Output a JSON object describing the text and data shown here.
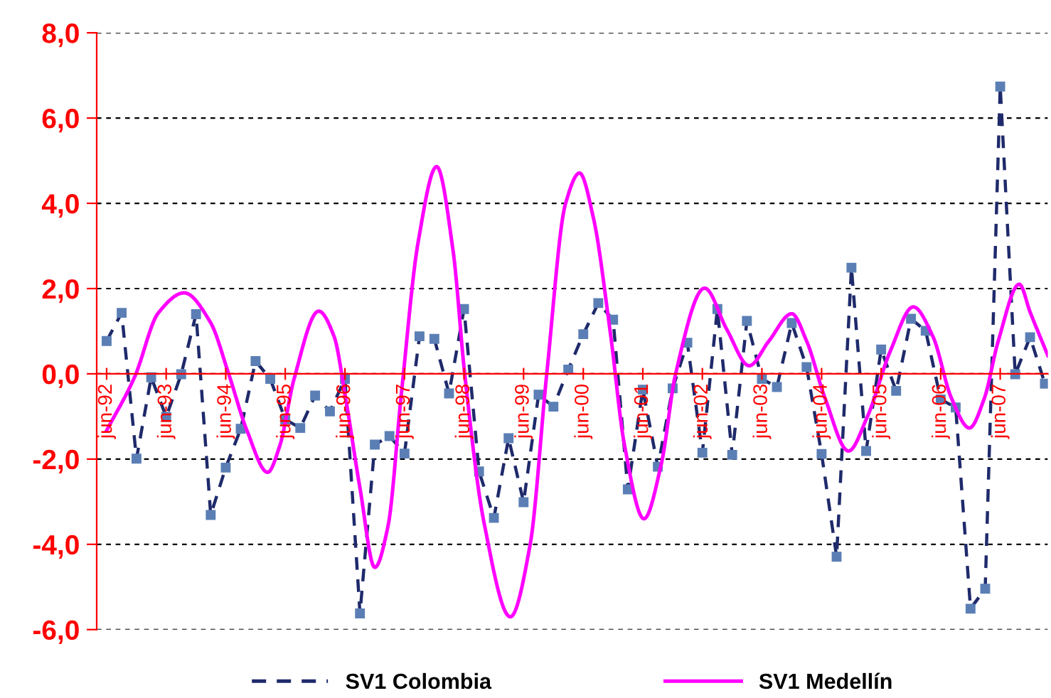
{
  "chart_data": {
    "type": "line",
    "xlim": [
      "1992-04",
      "2008-03-19"
    ],
    "xticks": [
      {
        "value": "1992-06",
        "label": "jun-92"
      },
      {
        "value": "1993-06",
        "label": "jun-93"
      },
      {
        "value": "1994-06",
        "label": "jun-94"
      },
      {
        "value": "1995-06",
        "label": "jun-95"
      },
      {
        "value": "1996-06",
        "label": "jun-96"
      },
      {
        "value": "1997-06",
        "label": "jun-97"
      },
      {
        "value": "1998-06",
        "label": "jun-98"
      },
      {
        "value": "1999-06",
        "label": "jun-99"
      },
      {
        "value": "2000-06",
        "label": "jun-00"
      },
      {
        "value": "2001-06",
        "label": "jun-01"
      },
      {
        "value": "2002-06",
        "label": "jun-02"
      },
      {
        "value": "2003-06",
        "label": "jun-03"
      },
      {
        "value": "2004-06",
        "label": "jun-04"
      },
      {
        "value": "2005-06",
        "label": "jun-05"
      },
      {
        "value": "2006-06",
        "label": "jun-06"
      },
      {
        "value": "2007-06",
        "label": "jun-07"
      }
    ],
    "ylim": [
      -6,
      8
    ],
    "yticks": [
      {
        "value": -6,
        "label": "-6,0"
      },
      {
        "value": -4,
        "label": "-4,0"
      },
      {
        "value": -2,
        "label": "-2,0"
      },
      {
        "value": 0,
        "label": "0,0"
      },
      {
        "value": 2,
        "label": "2,0"
      },
      {
        "value": 4,
        "label": "4,0"
      },
      {
        "value": 6,
        "label": "6,0"
      },
      {
        "value": 8,
        "label": "8,0"
      }
    ],
    "grid": "y",
    "legend": "bottom",
    "series": [
      {
        "name": "SV1 Colombia",
        "color": "#1f2a6b",
        "line_style": "dashed",
        "marker": "square",
        "x": [
          "1992-06",
          "1992-09",
          "1992-12",
          "1993-03",
          "1993-06",
          "1993-09",
          "1993-12",
          "1994-03",
          "1994-06",
          "1994-09",
          "1994-12",
          "1995-03",
          "1995-06",
          "1995-09",
          "1995-12",
          "1996-03",
          "1996-06",
          "1996-09",
          "1996-12",
          "1997-03",
          "1997-06",
          "1997-09",
          "1997-12",
          "1998-03",
          "1998-06",
          "1998-09",
          "1998-12",
          "1999-03",
          "1999-06",
          "1999-09",
          "1999-12",
          "2000-03",
          "2000-06",
          "2000-09",
          "2000-12",
          "2001-03",
          "2001-06",
          "2001-09",
          "2001-12",
          "2002-03",
          "2002-06",
          "2002-09",
          "2002-12",
          "2003-03",
          "2003-06",
          "2003-09",
          "2003-12",
          "2004-03",
          "2004-06",
          "2004-09",
          "2004-12",
          "2005-03",
          "2005-06",
          "2005-09",
          "2005-12",
          "2006-03",
          "2006-06",
          "2006-09",
          "2006-12",
          "2007-03",
          "2007-06",
          "2007-09",
          "2007-12",
          "2008-03"
        ],
        "values": [
          0.77,
          1.43,
          -1.99,
          -0.08,
          -1.01,
          -0.01,
          1.4,
          -3.31,
          -2.2,
          -1.29,
          0.3,
          -0.12,
          -1.07,
          -1.27,
          -0.51,
          -0.88,
          -0.12,
          -5.62,
          -1.66,
          -1.46,
          -1.87,
          0.88,
          0.82,
          -0.46,
          1.52,
          -2.29,
          -3.38,
          -1.51,
          -3.01,
          -0.49,
          -0.77,
          0.1,
          0.93,
          1.66,
          1.27,
          -2.71,
          -0.37,
          -2.18,
          -0.34,
          0.73,
          -1.85,
          1.52,
          -1.9,
          1.24,
          -0.12,
          -0.31,
          1.19,
          0.16,
          -1.88,
          -4.29,
          2.49,
          -1.81,
          0.57,
          -0.4,
          1.29,
          1.01,
          -0.6,
          -0.79,
          -5.51,
          -5.04,
          6.74,
          -0.01,
          0.86,
          -0.23
        ]
      },
      {
        "name": "SV1 Medellín",
        "color": "#ff00ff",
        "line_style": "solid",
        "marker": "none",
        "x": [
          "1992-06-01",
          "1992-11-20",
          "1993-04-14",
          "1993-09-19",
          "1994-02-27",
          "1994-06-19",
          "1994-10-10",
          "1995-02-13",
          "1995-04-29",
          "1995-07-25",
          "1995-12-23",
          "1996-03-26",
          "1996-06-05",
          "1996-09-01",
          "1996-12-01",
          "1997-02-20",
          "1997-05-13",
          "1997-08-24",
          "1997-12-15",
          "1998-03-26",
          "1998-06-05",
          "1998-09-30",
          "1999-03-12",
          "1999-07-11",
          "1999-10-21",
          "2000-02-13",
          "2000-05-09",
          "2000-08-02",
          "2000-11-13",
          "2001-02-09",
          "2001-06-08",
          "2001-09-22",
          "2001-12-19",
          "2002-06-15",
          "2002-10-29",
          "2003-03-15",
          "2003-07-14",
          "2003-12-01",
          "2004-03-01",
          "2004-06-22",
          "2004-11-13",
          "2005-03-08",
          "2005-07-28",
          "2005-12-15",
          "2006-04-14",
          "2006-08-06",
          "2006-11-24",
          "2007-02-24",
          "2007-05-20",
          "2007-09-26",
          "2007-12-03",
          "2008-03-19"
        ],
        "values": [
          -1.33,
          -0.07,
          1.43,
          1.9,
          1.21,
          0,
          -1.34,
          -2.31,
          -1.68,
          -0.12,
          1.47,
          0.88,
          -0.57,
          -2.68,
          -4.54,
          -3.57,
          -0.46,
          3.1,
          4.86,
          2.88,
          0,
          -3.46,
          -5.7,
          -4.01,
          0,
          3.99,
          4.71,
          3.66,
          0.99,
          -1.68,
          -3.4,
          -2.12,
          0,
          2.01,
          1.04,
          0.19,
          0.77,
          1.41,
          0.77,
          -0.57,
          -1.81,
          -1.01,
          0.54,
          1.57,
          0.88,
          -0.57,
          -1.27,
          -0.57,
          0.77,
          2.1,
          1.43,
          0.43
        ]
      }
    ]
  }
}
